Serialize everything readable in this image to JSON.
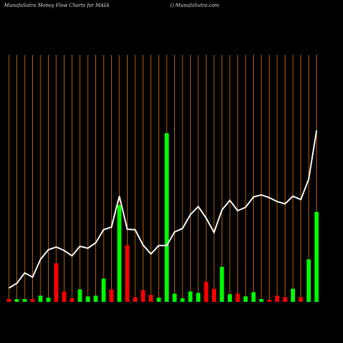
{
  "chart_data": {
    "type": "bar-line",
    "title": "MunafaSutra  Money Flow  Charts for MAIA",
    "subtitle": "() MunafaSutra.com",
    "ylim": [
      0,
      100
    ],
    "grid": true,
    "grid_color": "#b8650f",
    "bars": {
      "values": [
        1.1,
        1.1,
        1.1,
        1.1,
        2.5,
        1.7,
        15.6,
        4.2,
        1.4,
        5,
        2.2,
        2.5,
        9.4,
        5,
        39.2,
        23,
        1.9,
        4.7,
        2.8,
        1.7,
        68.3,
        3.3,
        1.4,
        4.2,
        3.6,
        8.1,
        5.3,
        14.2,
        3.1,
        3.3,
        2.2,
        3.9,
        1.1,
        0.8,
        2.5,
        1.9,
        5.3,
        1.9,
        17.2,
        36.4
      ],
      "colors": [
        "#ff0000",
        "#00ff00",
        "#00ff00",
        "#ff0000",
        "#00ff00",
        "#00ff00",
        "#ff0000",
        "#ff0000",
        "#ff0000",
        "#00ff00",
        "#00ff00",
        "#00ff00",
        "#00ff00",
        "#ff0000",
        "#00ff00",
        "#ff0000",
        "#ff0000",
        "#ff0000",
        "#ff0000",
        "#00ff00",
        "#00ff00",
        "#00ff00",
        "#00ff00",
        "#00ff00",
        "#00ff00",
        "#ff0000",
        "#ff0000",
        "#00ff00",
        "#00ff00",
        "#ff0000",
        "#00ff00",
        "#00ff00",
        "#00ff00",
        "#ff0000",
        "#ff0000",
        "#ff0000",
        "#00ff00",
        "#ff0000",
        "#00ff00",
        "#00ff00"
      ]
    },
    "line": {
      "color": "#ffffff",
      "values": [
        5.6,
        7.5,
        11.7,
        10,
        17.2,
        21.1,
        22.2,
        20.8,
        18.6,
        22.5,
        21.7,
        23.9,
        29.2,
        30.3,
        42.8,
        29.4,
        29.2,
        23,
        19.4,
        22.8,
        22.8,
        28.3,
        29.7,
        35.3,
        38.6,
        33.9,
        28.1,
        37.2,
        41.1,
        36.9,
        38.3,
        42.5,
        43.3,
        42.2,
        40.6,
        39.7,
        42.8,
        41.4,
        49.7,
        69.4
      ]
    }
  }
}
